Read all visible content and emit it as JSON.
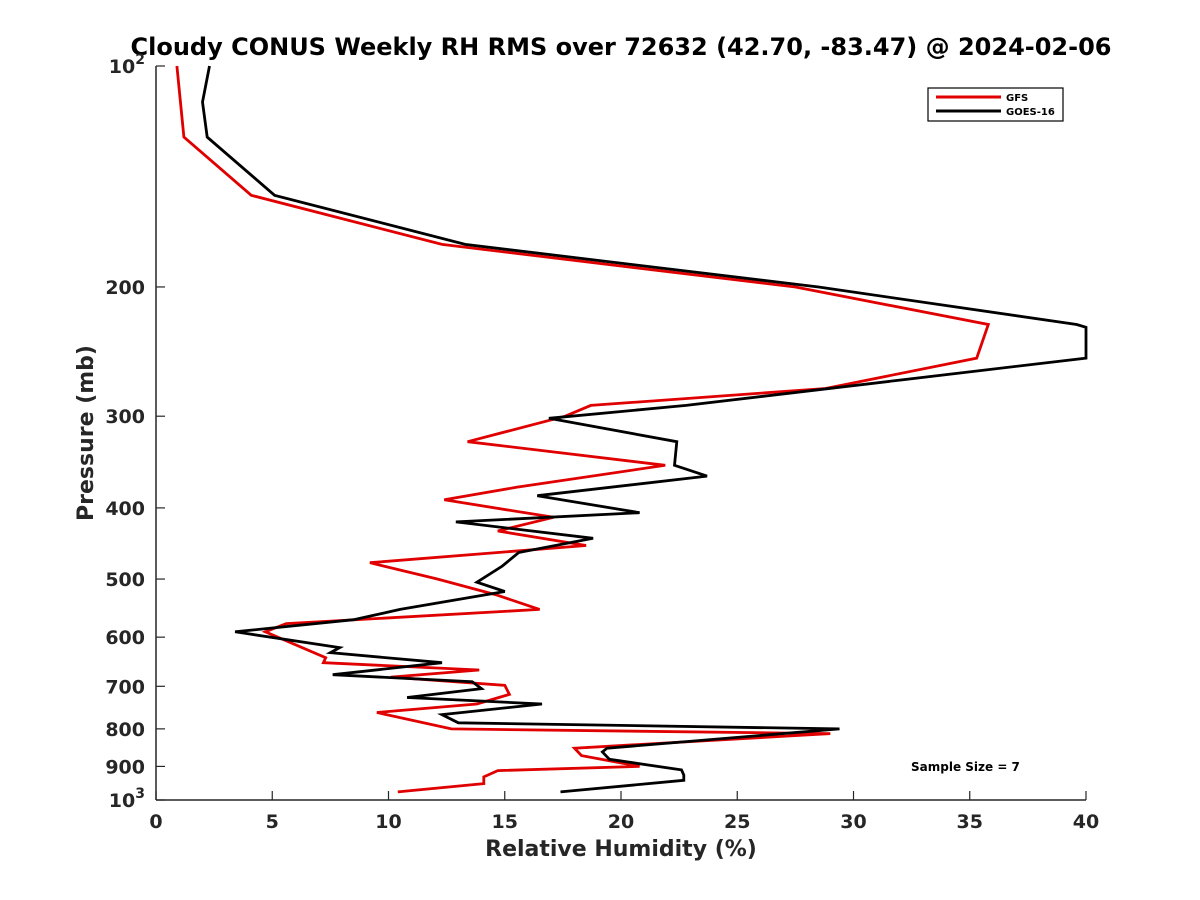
{
  "chart_data": {
    "type": "line",
    "title": "Cloudy CONUS Weekly RH RMS over 72632 (42.70, -83.47) @ 2024-02-06",
    "xlabel": "Relative Humidity (%)",
    "ylabel": "Pressure (mb)",
    "xlim": [
      0,
      40
    ],
    "ylim": [
      100,
      1000
    ],
    "y_scale": "log",
    "y_reversed": true,
    "grid": false,
    "legend_position": "top-right",
    "x_ticks": [
      "0",
      "5",
      "10",
      "15",
      "20",
      "25",
      "30",
      "35",
      "40"
    ],
    "y_ticks": [
      {
        "value": 100,
        "base": "10",
        "exp": "2"
      },
      {
        "value": 200,
        "label": "200"
      },
      {
        "value": 300,
        "label": "300"
      },
      {
        "value": 400,
        "label": "400"
      },
      {
        "value": 500,
        "label": "500"
      },
      {
        "value": 600,
        "label": "600"
      },
      {
        "value": 700,
        "label": "700"
      },
      {
        "value": 800,
        "label": "800"
      },
      {
        "value": 900,
        "label": "900"
      },
      {
        "value": 1000,
        "base": "10",
        "exp": "3"
      }
    ],
    "annotation": "Sample Size = 7",
    "series": [
      {
        "name": "GFS",
        "color": "#e00000",
        "points": [
          {
            "x": 0.9,
            "p": 100
          },
          {
            "x": 1.2,
            "p": 125
          },
          {
            "x": 4.1,
            "p": 150
          },
          {
            "x": 12.3,
            "p": 175
          },
          {
            "x": 27.5,
            "p": 200
          },
          {
            "x": 35.8,
            "p": 225
          },
          {
            "x": 35.3,
            "p": 250
          },
          {
            "x": 28.8,
            "p": 275
          },
          {
            "x": 18.7,
            "p": 290
          },
          {
            "x": 17.6,
            "p": 300
          },
          {
            "x": 13.4,
            "p": 325
          },
          {
            "x": 21.9,
            "p": 350
          },
          {
            "x": 15.5,
            "p": 375
          },
          {
            "x": 12.4,
            "p": 390
          },
          {
            "x": 17.1,
            "p": 412
          },
          {
            "x": 14.7,
            "p": 430
          },
          {
            "x": 18.5,
            "p": 450
          },
          {
            "x": 9.2,
            "p": 475
          },
          {
            "x": 12.1,
            "p": 500
          },
          {
            "x": 14.6,
            "p": 525
          },
          {
            "x": 16.5,
            "p": 550
          },
          {
            "x": 5.6,
            "p": 575
          },
          {
            "x": 4.7,
            "p": 590
          },
          {
            "x": 7.3,
            "p": 640
          },
          {
            "x": 7.2,
            "p": 650
          },
          {
            "x": 13.9,
            "p": 665
          },
          {
            "x": 10.1,
            "p": 680
          },
          {
            "x": 15.0,
            "p": 698
          },
          {
            "x": 15.2,
            "p": 718
          },
          {
            "x": 13.8,
            "p": 740
          },
          {
            "x": 9.5,
            "p": 760
          },
          {
            "x": 12.7,
            "p": 800
          },
          {
            "x": 29.0,
            "p": 812
          },
          {
            "x": 18.0,
            "p": 850
          },
          {
            "x": 18.3,
            "p": 870
          },
          {
            "x": 20.8,
            "p": 900
          },
          {
            "x": 14.7,
            "p": 912
          },
          {
            "x": 14.1,
            "p": 930
          },
          {
            "x": 14.1,
            "p": 950
          },
          {
            "x": 10.4,
            "p": 975
          }
        ]
      },
      {
        "name": "GOES-16",
        "color": "#000000",
        "points": [
          {
            "x": 2.3,
            "p": 100
          },
          {
            "x": 2.0,
            "p": 112
          },
          {
            "x": 2.2,
            "p": 125
          },
          {
            "x": 5.1,
            "p": 150
          },
          {
            "x": 13.3,
            "p": 175
          },
          {
            "x": 28.5,
            "p": 200
          },
          {
            "x": 39.6,
            "p": 225
          },
          {
            "x": 40.0,
            "p": 227
          },
          {
            "x": 40.0,
            "p": 250
          },
          {
            "x": 22.8,
            "p": 290
          },
          {
            "x": 16.9,
            "p": 302
          },
          {
            "x": 22.4,
            "p": 325
          },
          {
            "x": 22.3,
            "p": 350
          },
          {
            "x": 23.7,
            "p": 362
          },
          {
            "x": 16.4,
            "p": 385
          },
          {
            "x": 20.8,
            "p": 406
          },
          {
            "x": 12.9,
            "p": 418
          },
          {
            "x": 18.8,
            "p": 440
          },
          {
            "x": 15.6,
            "p": 460
          },
          {
            "x": 14.9,
            "p": 480
          },
          {
            "x": 13.8,
            "p": 505
          },
          {
            "x": 15.0,
            "p": 520
          },
          {
            "x": 10.5,
            "p": 550
          },
          {
            "x": 8.5,
            "p": 568
          },
          {
            "x": 3.4,
            "p": 590
          },
          {
            "x": 7.9,
            "p": 620
          },
          {
            "x": 7.5,
            "p": 630
          },
          {
            "x": 12.3,
            "p": 650
          },
          {
            "x": 7.6,
            "p": 675
          },
          {
            "x": 13.6,
            "p": 690
          },
          {
            "x": 14.0,
            "p": 705
          },
          {
            "x": 10.8,
            "p": 725
          },
          {
            "x": 16.6,
            "p": 740
          },
          {
            "x": 12.3,
            "p": 765
          },
          {
            "x": 13.0,
            "p": 785
          },
          {
            "x": 29.4,
            "p": 800
          },
          {
            "x": 19.4,
            "p": 850
          },
          {
            "x": 19.2,
            "p": 860
          },
          {
            "x": 19.5,
            "p": 880
          },
          {
            "x": 22.6,
            "p": 910
          },
          {
            "x": 22.7,
            "p": 925
          },
          {
            "x": 22.7,
            "p": 940
          },
          {
            "x": 17.4,
            "p": 975
          }
        ]
      }
    ]
  }
}
